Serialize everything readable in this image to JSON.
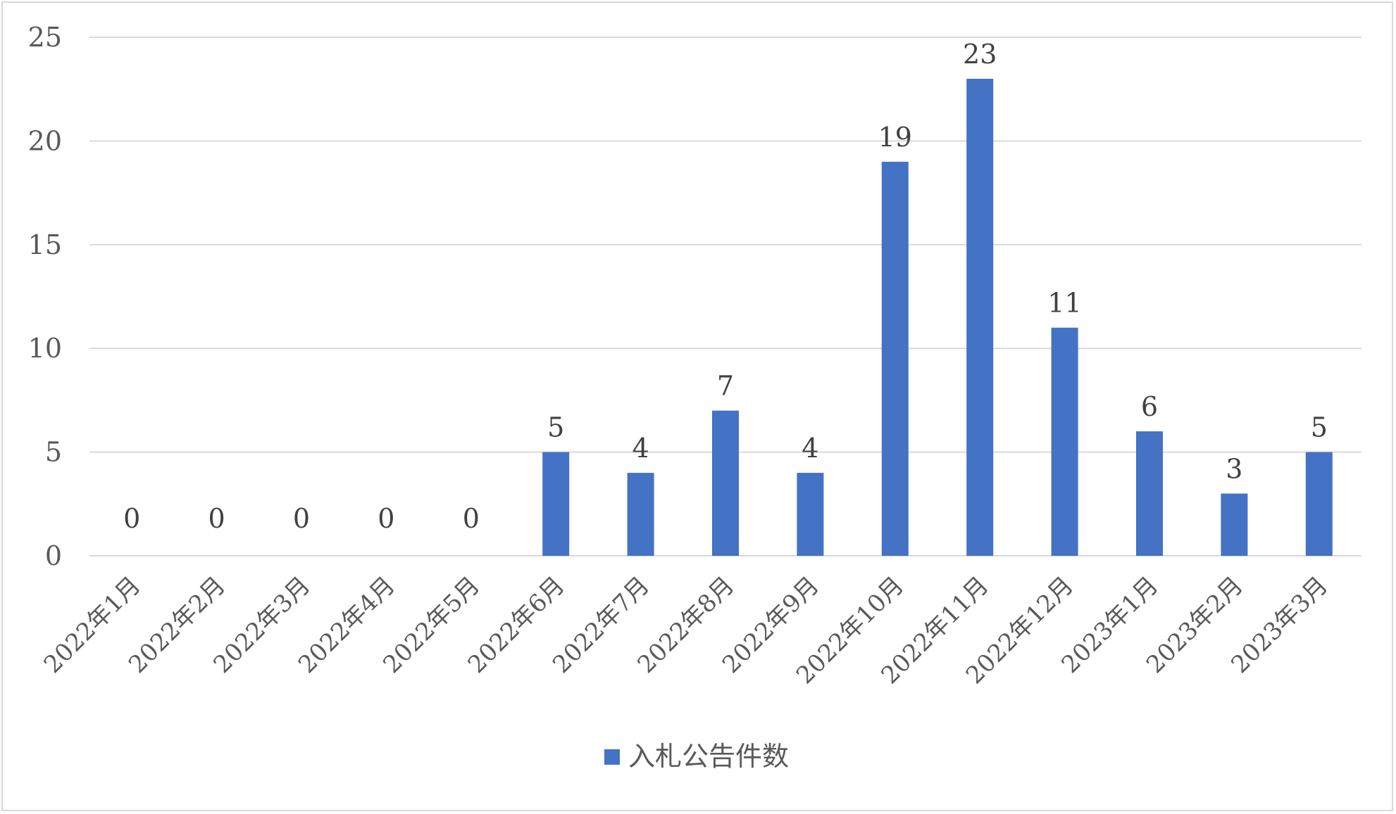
{
  "chart_data": {
    "type": "bar",
    "title": "",
    "xlabel": "",
    "ylabel": "",
    "ylim": [
      0,
      25
    ],
    "yticks": [
      0,
      5,
      10,
      15,
      20,
      25
    ],
    "grid": true,
    "legend_position": "bottom",
    "categories": [
      "2022年1月",
      "2022年2月",
      "2022年3月",
      "2022年4月",
      "2022年5月",
      "2022年6月",
      "2022年7月",
      "2022年8月",
      "2022年9月",
      "2022年10月",
      "2022年11月",
      "2022年12月",
      "2023年1月",
      "2023年2月",
      "2023年3月"
    ],
    "series": [
      {
        "name": "入札公告件数",
        "color": "#4472c4",
        "values": [
          0,
          0,
          0,
          0,
          0,
          5,
          4,
          7,
          4,
          19,
          23,
          11,
          6,
          3,
          5
        ]
      }
    ],
    "data_labels": true
  }
}
